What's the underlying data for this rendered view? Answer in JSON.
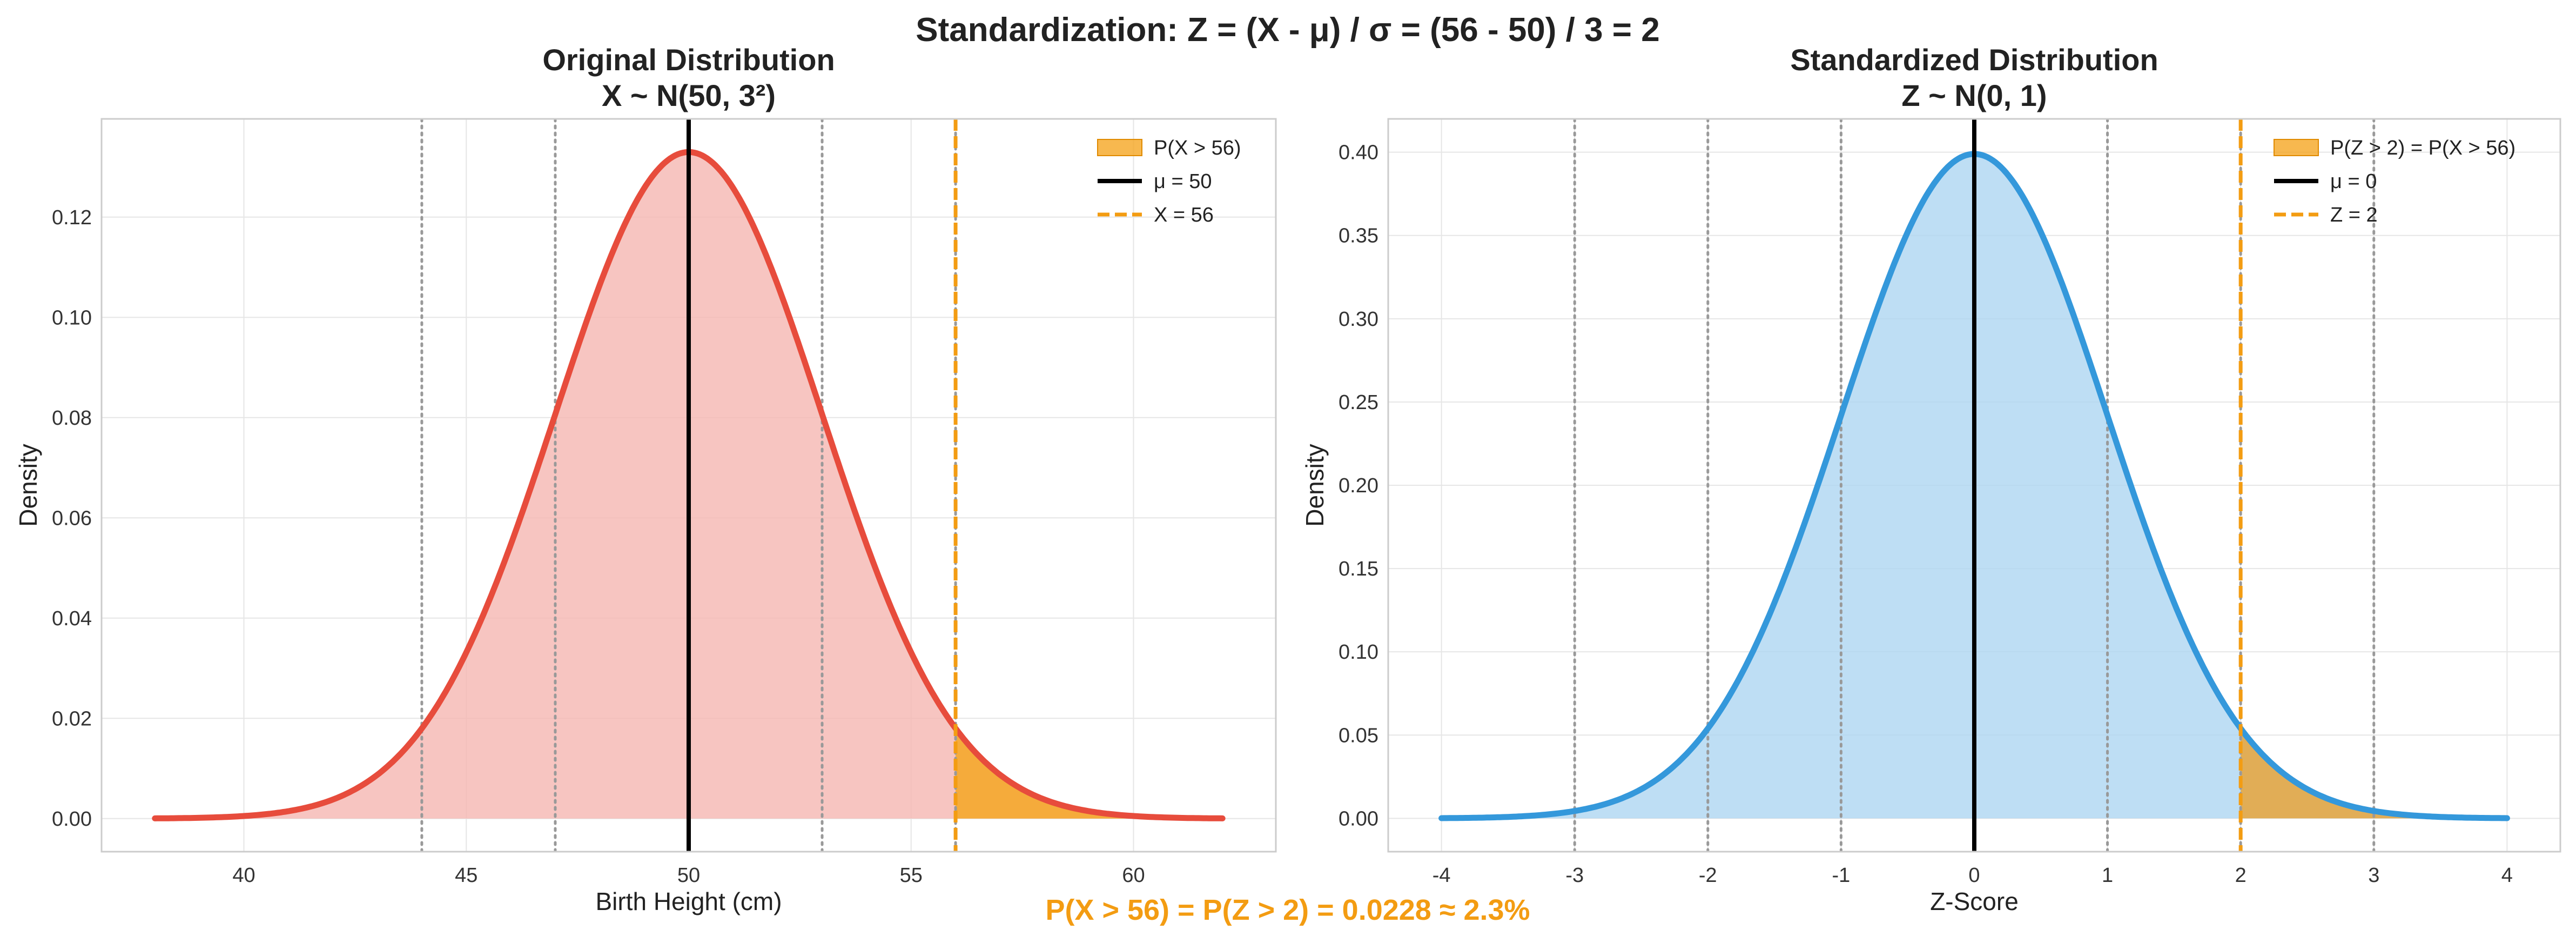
{
  "figure": {
    "suptitle": "Standardization: Z = (X - μ) / σ = (56 - 50) / 3 = 2",
    "footer": "P(X > 56) = P(Z > 2) = 0.0228 ≈ 2.3%",
    "footer_color": "#f39c12"
  },
  "chart_data": [
    {
      "type": "area",
      "title_line1": "Original Distribution",
      "title_line2": "X ~ N(50, 3²)",
      "xlabel": "Birth Height (cm)",
      "ylabel": "Density",
      "distribution": {
        "mean": 50,
        "sd": 3
      },
      "x_range": [
        38,
        62
      ],
      "xlim": [
        36.8,
        63.2
      ],
      "ylim": [
        -0.0066,
        0.1396
      ],
      "xticks": [
        40,
        45,
        50,
        55,
        60
      ],
      "yticks": [
        0.0,
        0.02,
        0.04,
        0.06,
        0.08,
        0.1,
        0.12
      ],
      "ytick_labels": [
        "0.00",
        "0.02",
        "0.04",
        "0.06",
        "0.08",
        "0.10",
        "0.12"
      ],
      "threshold": 56,
      "sigma_lines": [
        44,
        47,
        53,
        56
      ],
      "curve_color": "#e74c3c",
      "fill_color": "#f5b7b1",
      "tail_color": "#f5a623",
      "grid": true,
      "legend_position": "top-right",
      "legend": [
        {
          "kind": "patch",
          "label": "P(X > 56)",
          "color": "#f5a623"
        },
        {
          "kind": "solid",
          "label": "μ = 50",
          "color": "#000000"
        },
        {
          "kind": "dashed",
          "label": "X = 56",
          "color": "#f39c12"
        }
      ]
    },
    {
      "type": "area",
      "title_line1": "Standardized Distribution",
      "title_line2": "Z ~ N(0, 1)",
      "xlabel": "Z-Score",
      "ylabel": "Density",
      "distribution": {
        "mean": 0,
        "sd": 1
      },
      "x_range": [
        -4,
        4
      ],
      "xlim": [
        -4.4,
        4.4
      ],
      "ylim": [
        -0.02,
        0.42
      ],
      "xticks": [
        -4,
        -3,
        -2,
        -1,
        0,
        1,
        2,
        3,
        4
      ],
      "yticks": [
        0.0,
        0.05,
        0.1,
        0.15,
        0.2,
        0.25,
        0.3,
        0.35,
        0.4
      ],
      "ytick_labels": [
        "0.00",
        "0.05",
        "0.10",
        "0.15",
        "0.20",
        "0.25",
        "0.30",
        "0.35",
        "0.40"
      ],
      "threshold": 2,
      "sigma_lines": [
        -3,
        -2,
        -1,
        1,
        2,
        3
      ],
      "curve_color": "#3498db",
      "fill_color": "#aed6f1",
      "tail_color": "#e8a53a",
      "grid": true,
      "legend_position": "top-right",
      "legend": [
        {
          "kind": "patch",
          "label": "P(Z > 2) = P(X > 56)",
          "color": "#f5a623"
        },
        {
          "kind": "solid",
          "label": "μ = 0",
          "color": "#000000"
        },
        {
          "kind": "dashed",
          "label": "Z = 2",
          "color": "#f39c12"
        }
      ]
    }
  ]
}
